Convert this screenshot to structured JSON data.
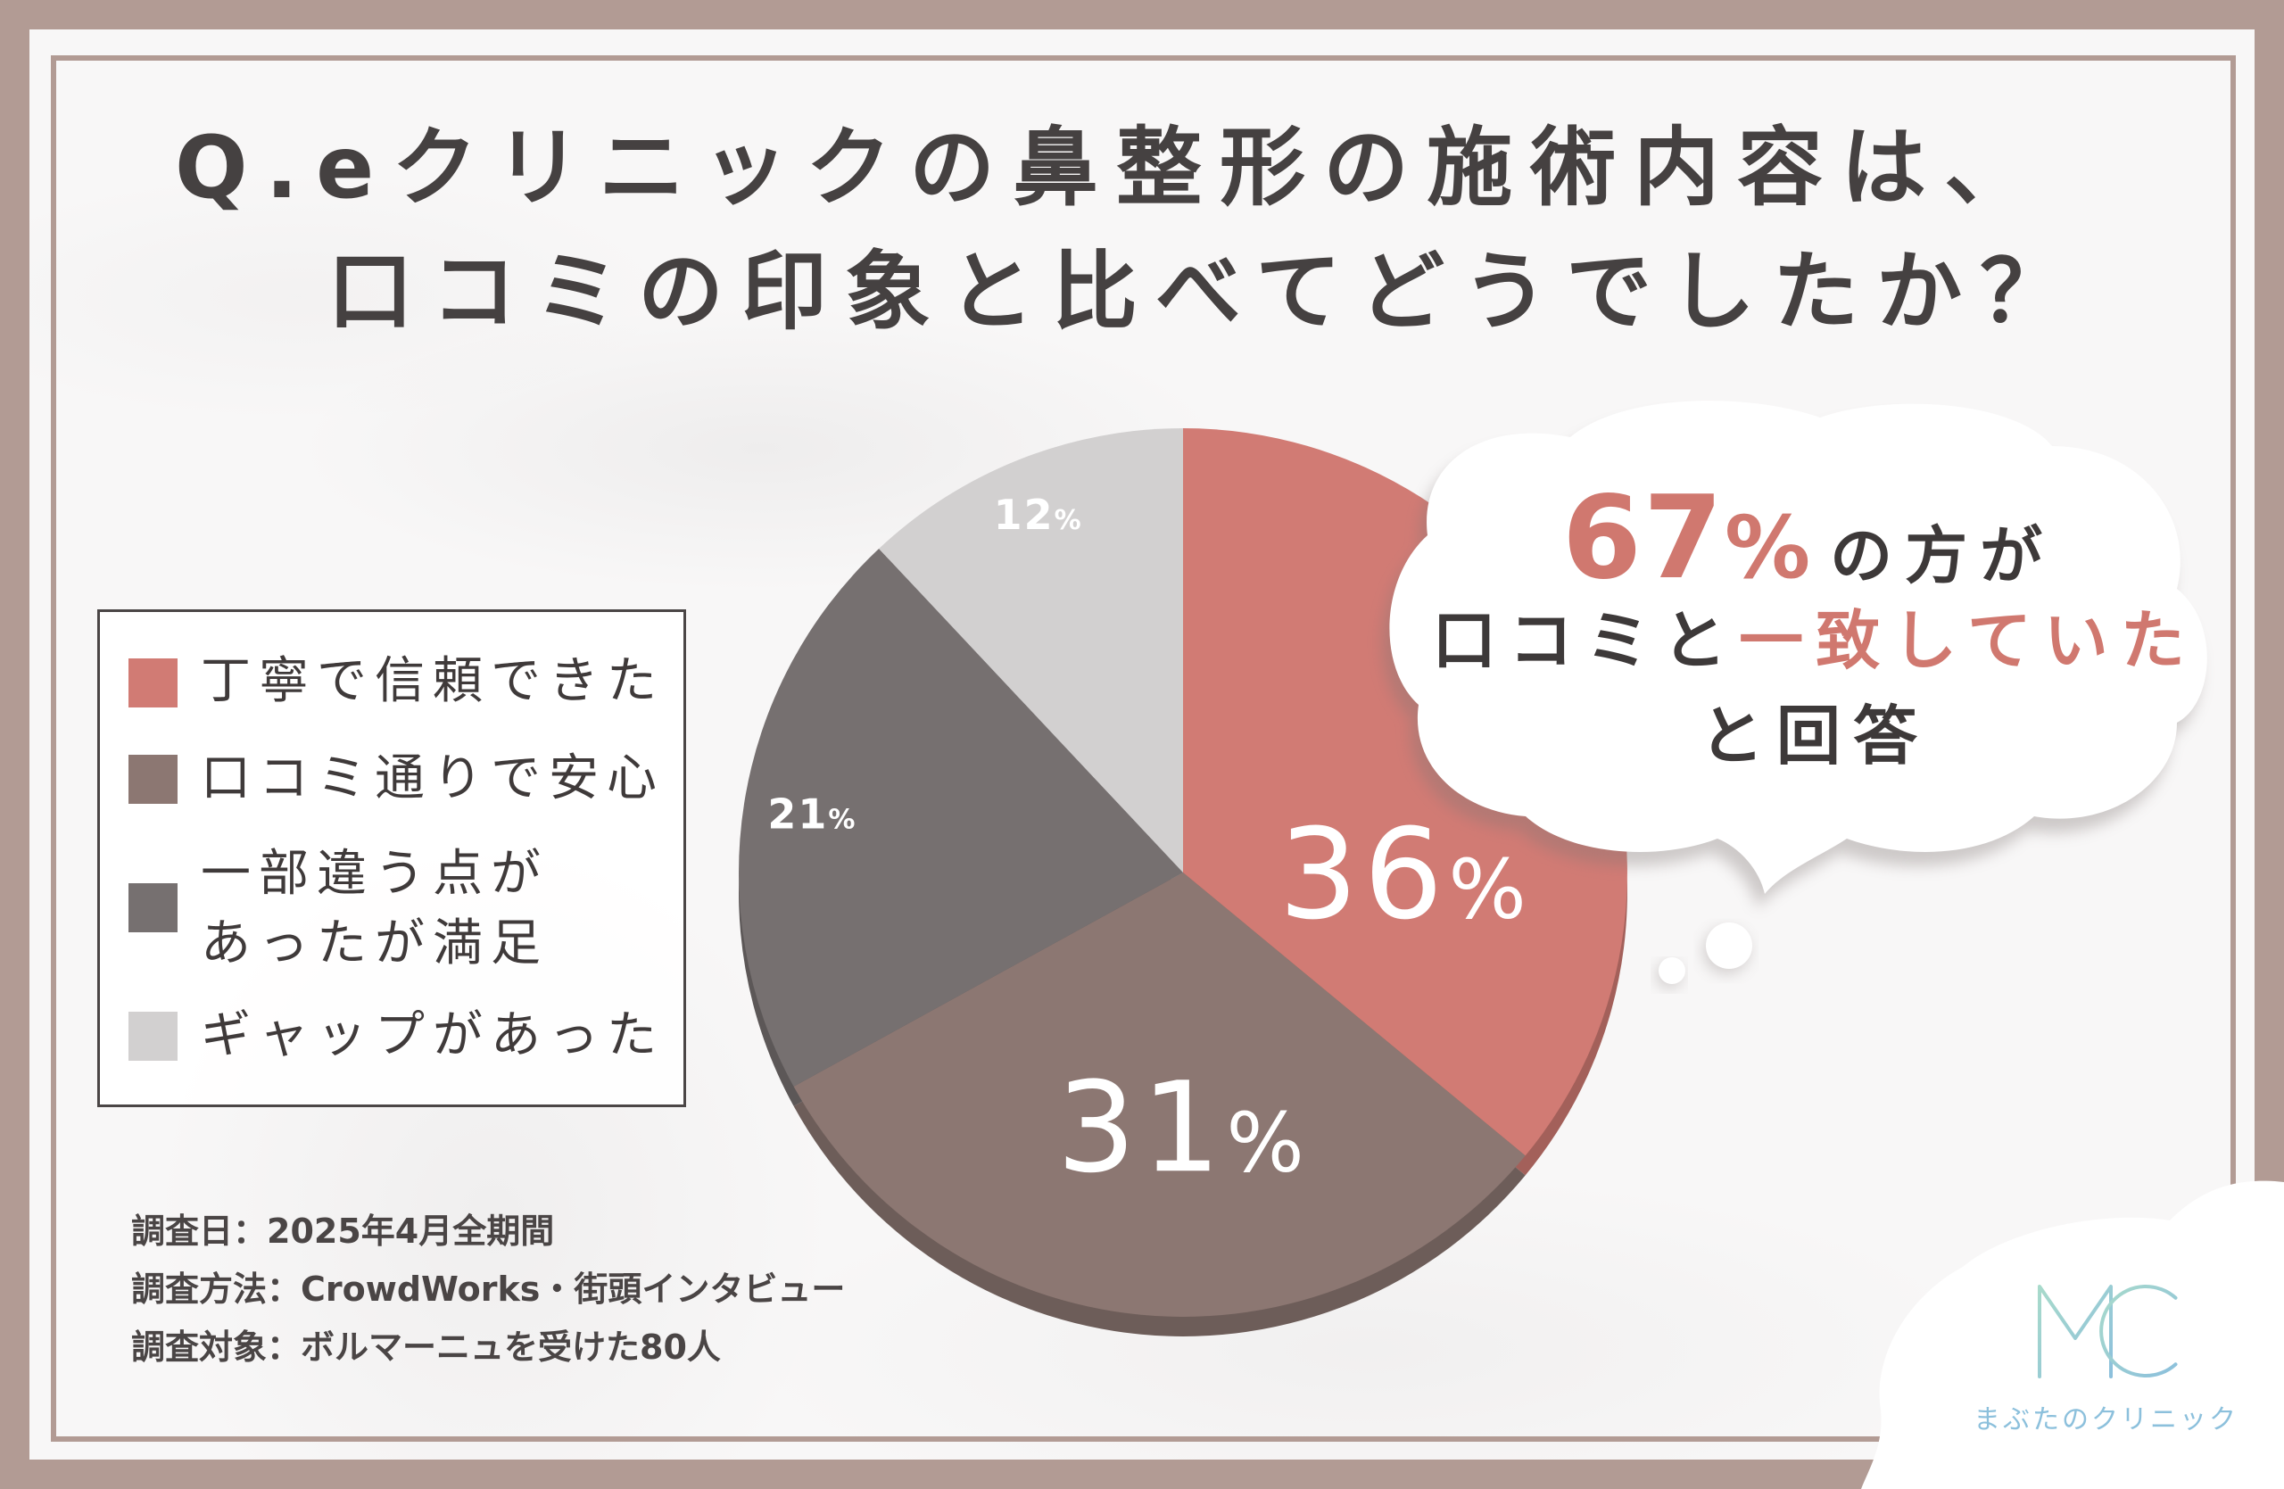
{
  "chart_data": {
    "type": "pie",
    "title_lines": [
      "Q.eクリニックの鼻整形の施術内容は、",
      "口コミの印象と比べてどうでしたか？"
    ],
    "unit": "%",
    "legend_position": "left",
    "slices": [
      {
        "label_lines": [
          "丁寧で信頼できた"
        ],
        "value": 36,
        "color": "#d17b74"
      },
      {
        "label_lines": [
          "口コミ通りで安心"
        ],
        "value": 31,
        "color": "#8c7772"
      },
      {
        "label_lines": [
          "一部違う点が",
          "あったが満足"
        ],
        "value": 21,
        "color": "#767070"
      },
      {
        "label_lines": [
          "ギャップがあった"
        ],
        "value": 12,
        "color": "#d2d0d0"
      }
    ]
  },
  "callout": {
    "value": "67",
    "unit": "%",
    "line1_rest": "の方が",
    "line2_plain": "口コミと",
    "line2_accent": "一致していた",
    "line3": "と回答"
  },
  "survey_notes": [
    "調査日：2025年4月全期間",
    "調査方法：CrowdWorks・街頭インタビュー",
    "調査対象：ボルマーニュを受けた80人"
  ],
  "logo": {
    "mark": "MC",
    "name": "まぶたのクリニック"
  },
  "colors": {
    "frame": "#b29b94",
    "accent": "#d0786f",
    "text": "#454141",
    "logo_mint": "#a8dacb",
    "logo_blue": "#8cc0dc"
  }
}
